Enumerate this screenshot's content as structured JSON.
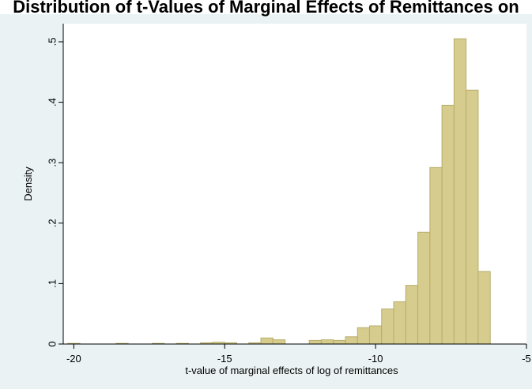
{
  "chart_data": {
    "type": "histogram",
    "title": "Distribution of t-Values of Marginal Effects of Remittances on",
    "xlabel": "t-value of marginal effects of log of remittances",
    "ylabel": "Density",
    "xlim": [
      -20.35,
      -5.0
    ],
    "ylim": [
      0,
      0.53
    ],
    "xticks": [
      -20,
      -15,
      -10,
      -5
    ],
    "xtick_labels": [
      "-20",
      "-15",
      "-10",
      "-5"
    ],
    "yticks": [
      0,
      0.1,
      0.2,
      0.3,
      0.4,
      0.5
    ],
    "ytick_labels": [
      "0",
      ".1",
      ".2",
      ".3",
      ".4",
      ".5"
    ],
    "grid": false,
    "bin_width": 0.4,
    "bins": [
      {
        "start": -20.2,
        "end": -19.8,
        "density": 0.001
      },
      {
        "start": -18.6,
        "end": -18.2,
        "density": 0.001
      },
      {
        "start": -17.4,
        "end": -17.0,
        "density": 0.001
      },
      {
        "start": -16.6,
        "end": -16.2,
        "density": 0.001
      },
      {
        "start": -15.8,
        "end": -15.4,
        "density": 0.002
      },
      {
        "start": -15.4,
        "end": -15.0,
        "density": 0.003
      },
      {
        "start": -15.0,
        "end": -14.6,
        "density": 0.002
      },
      {
        "start": -14.2,
        "end": -13.8,
        "density": 0.002
      },
      {
        "start": -13.8,
        "end": -13.4,
        "density": 0.01
      },
      {
        "start": -13.4,
        "end": -13.0,
        "density": 0.007
      },
      {
        "start": -12.2,
        "end": -11.8,
        "density": 0.006
      },
      {
        "start": -11.8,
        "end": -11.4,
        "density": 0.007
      },
      {
        "start": -11.4,
        "end": -11.0,
        "density": 0.006
      },
      {
        "start": -11.0,
        "end": -10.6,
        "density": 0.012
      },
      {
        "start": -10.6,
        "end": -10.2,
        "density": 0.027
      },
      {
        "start": -10.2,
        "end": -9.8,
        "density": 0.03
      },
      {
        "start": -9.8,
        "end": -9.4,
        "density": 0.058
      },
      {
        "start": -9.4,
        "end": -9.0,
        "density": 0.07
      },
      {
        "start": -9.0,
        "end": -8.6,
        "density": 0.097
      },
      {
        "start": -8.6,
        "end": -8.2,
        "density": 0.185
      },
      {
        "start": -8.2,
        "end": -7.8,
        "density": 0.292
      },
      {
        "start": -7.8,
        "end": -7.4,
        "density": 0.395
      },
      {
        "start": -7.4,
        "end": -7.0,
        "density": 0.505
      },
      {
        "start": -7.0,
        "end": -6.6,
        "density": 0.42
      },
      {
        "start": -6.6,
        "end": -6.2,
        "density": 0.12
      }
    ],
    "colors": {
      "bar_fill": "#d6cc8e",
      "bar_edge": "#b8ad6a",
      "background": "#eaf2f3",
      "plot_area": "#ffffff"
    }
  }
}
